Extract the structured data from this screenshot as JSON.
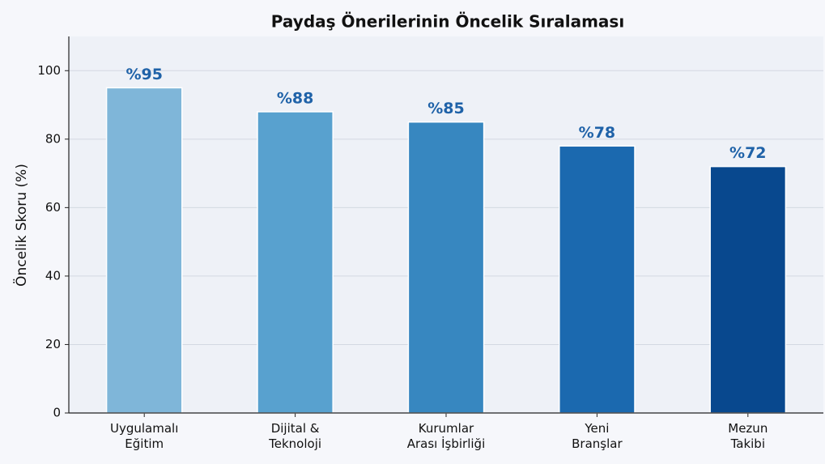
{
  "chart_data": {
    "type": "bar",
    "title": "Paydaş Önerilerinin Öncelik Sıralaması",
    "ylabel": "Öncelik Skoru (%)",
    "categories": [
      [
        "Uygulamalı",
        "Eğitim"
      ],
      [
        "Dijital &",
        "Teknoloji"
      ],
      [
        "Kurumlar",
        "Arası İşbirliği"
      ],
      [
        "Yeni",
        "Branşlar"
      ],
      [
        "Mezun",
        "Takibi"
      ]
    ],
    "values": [
      95,
      88,
      85,
      78,
      72
    ],
    "value_labels": [
      "%95",
      "%88",
      "%85",
      "%78",
      "%72"
    ],
    "colors": [
      "#7fb6d9",
      "#58a1cf",
      "#3787c0",
      "#1b69af",
      "#08488e"
    ],
    "ylim": [
      0,
      110
    ],
    "yticks": [
      0,
      20,
      40,
      60,
      80,
      100
    ],
    "grid": true
  }
}
